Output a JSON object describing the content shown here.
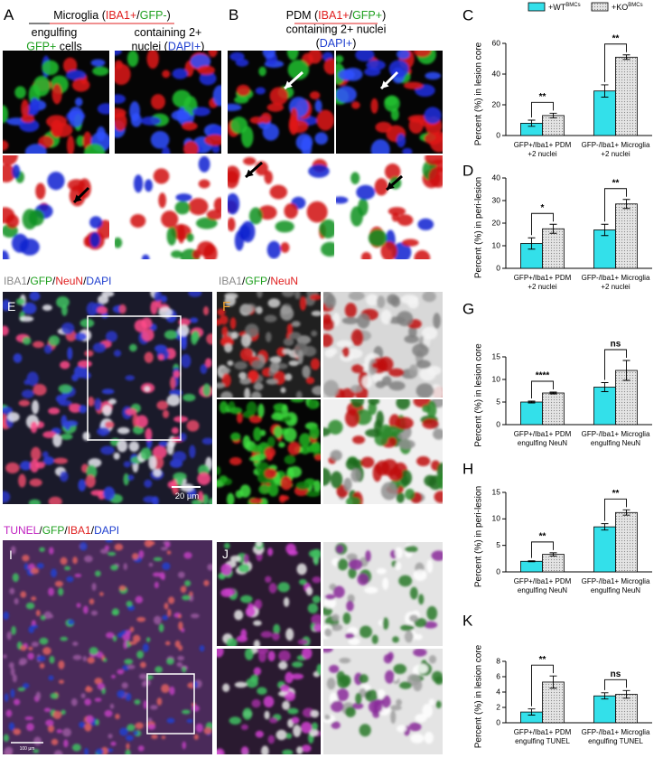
{
  "blocks": {
    "a_label": {
      "lines": [
        [
          {
            "text": "A",
            "color": "#000000"
          }
        ]
      ]
    },
    "a_title": {
      "lines": [
        [
          {
            "text": "Microglia (",
            "color": "#000000"
          },
          {
            "text": "IBA1+",
            "color": "#e02020"
          },
          {
            "text": "/",
            "color": "#000000"
          },
          {
            "text": "GFP-",
            "color": "#1fa01f"
          },
          {
            "text": ")",
            "color": "#000000"
          }
        ]
      ]
    },
    "a_cap1": {
      "lines": [
        [
          {
            "text": "engulfing",
            "color": "#000000"
          }
        ],
        [
          {
            "text": "GFP+",
            "color": "#1fa01f"
          },
          {
            "text": " cells",
            "color": "#000000"
          }
        ]
      ]
    },
    "a_cap2": {
      "lines": [
        [
          {
            "text": "containing 2+",
            "color": "#000000"
          }
        ],
        [
          {
            "text": "nuclei (",
            "color": "#000000"
          },
          {
            "text": "DAPI+",
            "color": "#2040d0"
          },
          {
            "text": ")",
            "color": "#000000"
          }
        ]
      ]
    },
    "b_label": {
      "lines": [
        [
          {
            "text": "B",
            "color": "#000000"
          }
        ]
      ]
    },
    "b_title": {
      "lines": [
        [
          {
            "text": "PDM (",
            "color": "#000000"
          },
          {
            "text": "IBA1+",
            "color": "#e02020"
          },
          {
            "text": "/",
            "color": "#000000"
          },
          {
            "text": "GFP+",
            "color": "#1fa01f"
          },
          {
            "text": ")",
            "color": "#000000"
          }
        ],
        [
          {
            "text": "containing 2+ nuclei",
            "color": "#000000"
          }
        ],
        [
          {
            "text": "(",
            "color": "#000000"
          },
          {
            "text": "DAPI+",
            "color": "#2040d0"
          },
          {
            "text": ")",
            "color": "#000000"
          }
        ]
      ]
    },
    "e_title": {
      "lines": [
        [
          {
            "text": "IBA1",
            "color": "#8a8a8a"
          },
          {
            "text": "/",
            "color": "#000000"
          },
          {
            "text": "GFP",
            "color": "#1fa01f"
          },
          {
            "text": "/",
            "color": "#000000"
          },
          {
            "text": "NeuN",
            "color": "#e02020"
          },
          {
            "text": "/",
            "color": "#000000"
          },
          {
            "text": "DAPI",
            "color": "#2040d0"
          }
        ]
      ]
    },
    "e_label": {
      "lines": [
        [
          {
            "text": "E",
            "color": "#ffffff"
          }
        ]
      ]
    },
    "e_scale": {
      "lines": [
        [
          {
            "text": "20 µm",
            "color": "#ffffff"
          }
        ]
      ]
    },
    "f_title": {
      "lines": [
        [
          {
            "text": "IBA1",
            "color": "#8a8a8a"
          },
          {
            "text": "/",
            "color": "#000000"
          },
          {
            "text": "GFP",
            "color": "#1fa01f"
          },
          {
            "text": "/",
            "color": "#000000"
          },
          {
            "text": "NeuN",
            "color": "#e02020"
          }
        ]
      ]
    },
    "f_label": {
      "lines": [
        [
          {
            "text": "F",
            "color": "#f0a030"
          }
        ]
      ]
    },
    "i_title": {
      "lines": [
        [
          {
            "text": "TUNEL",
            "color": "#c020c0"
          },
          {
            "text": "/",
            "color": "#000000"
          },
          {
            "text": "GFP",
            "color": "#1fa01f"
          },
          {
            "text": "/",
            "color": "#000000"
          },
          {
            "text": "IBA1",
            "color": "#e02020"
          },
          {
            "text": "/",
            "color": "#000000"
          },
          {
            "text": "DAPI",
            "color": "#2040d0"
          }
        ]
      ]
    },
    "i_label": {
      "lines": [
        [
          {
            "text": "I",
            "color": "#ffffff"
          }
        ]
      ]
    },
    "i_scale": {
      "lines": [
        [
          {
            "text": "100 µm",
            "color": "#ffffff"
          }
        ]
      ]
    },
    "j_label": {
      "lines": [
        [
          {
            "text": "J",
            "color": "#ffffff"
          }
        ]
      ]
    }
  },
  "chart_data": [
    {
      "type": "bar",
      "panel": "C",
      "ylabel": "Percent (%) in lesion core",
      "legend": "top",
      "categories": [
        [
          "GFP+/Iba1+ PDM",
          "+2 nuclei"
        ],
        [
          "GFP-/Iba1+ Microglia",
          "+2 nuclei"
        ]
      ],
      "series": [
        {
          "name": "+WT",
          "name_sup": "BMCs",
          "color": "#33e0ea",
          "pattern": "solid",
          "values": [
            8,
            29
          ],
          "errors": [
            2,
            4
          ]
        },
        {
          "name": "+KO",
          "name_sup": "BMCs",
          "color": "#dcdcdc",
          "pattern": "dots",
          "values": [
            13,
            51
          ],
          "errors": [
            1.5,
            1.5
          ]
        }
      ],
      "significance": [
        "**",
        "**"
      ],
      "ylim": [
        0,
        60
      ],
      "yticks": [
        0,
        20,
        40,
        60
      ]
    },
    {
      "type": "bar",
      "panel": "D",
      "ylabel": "Percent (%) in peri-lesion",
      "categories": [
        [
          "GFP+/Iba1+ PDM",
          "+2 nuclei"
        ],
        [
          "GFP-/Iba1+ Microglia",
          "+2 nuclei"
        ]
      ],
      "series": [
        {
          "name": "+WT",
          "name_sup": "BMCs",
          "color": "#33e0ea",
          "pattern": "solid",
          "values": [
            11,
            17
          ],
          "errors": [
            2.5,
            2.5
          ]
        },
        {
          "name": "+KO",
          "name_sup": "BMCs",
          "color": "#dcdcdc",
          "pattern": "dots",
          "values": [
            17.5,
            28.5
          ],
          "errors": [
            2,
            2
          ]
        }
      ],
      "significance": [
        "*",
        "**"
      ],
      "ylim": [
        0,
        40
      ],
      "yticks": [
        0,
        10,
        20,
        30,
        40
      ]
    },
    {
      "type": "bar",
      "panel": "G",
      "ylabel": "Percent (%) in lesion core",
      "categories": [
        [
          "GFP+/Iba1+ PDM",
          "engulfing NeuN"
        ],
        [
          "GFP-/Iba1+ Microglia",
          "engulfing NeuN"
        ]
      ],
      "series": [
        {
          "name": "+WT",
          "name_sup": "BMCs",
          "color": "#33e0ea",
          "pattern": "solid",
          "values": [
            5,
            8.3
          ],
          "errors": [
            0.2,
            1
          ]
        },
        {
          "name": "+KO",
          "name_sup": "BMCs",
          "color": "#dcdcdc",
          "pattern": "dots",
          "values": [
            7,
            12
          ],
          "errors": [
            0.2,
            2.2
          ]
        }
      ],
      "significance": [
        "****",
        "ns"
      ],
      "ylim": [
        0,
        15
      ],
      "yticks": [
        0,
        5,
        10,
        15
      ]
    },
    {
      "type": "bar",
      "panel": "H",
      "ylabel": "Percent (%) in peri-lesion",
      "categories": [
        [
          "GFP+/Iba1+ PDM",
          "engulfing NeuN"
        ],
        [
          "GFP-/Iba1+ Microglia",
          "engulfing NeuN"
        ]
      ],
      "series": [
        {
          "name": "+WT",
          "name_sup": "BMCs",
          "color": "#33e0ea",
          "pattern": "solid",
          "values": [
            2,
            8.5
          ],
          "errors": [
            0.1,
            0.6
          ]
        },
        {
          "name": "+KO",
          "name_sup": "BMCs",
          "color": "#dcdcdc",
          "pattern": "dots",
          "values": [
            3.3,
            11.2
          ],
          "errors": [
            0.3,
            0.5
          ]
        }
      ],
      "significance": [
        "**",
        "**"
      ],
      "ylim": [
        0,
        15
      ],
      "yticks": [
        0,
        5,
        10,
        15
      ]
    },
    {
      "type": "bar",
      "panel": "K",
      "ylabel": "Percent (%) in lesion core",
      "categories": [
        [
          "GFP+/Iba1+ PDM",
          "engulfing TUNEL"
        ],
        [
          "GFP-/Iba1+ Microglia",
          "engulfing TUNEL"
        ]
      ],
      "series": [
        {
          "name": "+WT",
          "name_sup": "BMCs",
          "color": "#33e0ea",
          "pattern": "solid",
          "values": [
            1.4,
            3.5
          ],
          "errors": [
            0.4,
            0.4
          ]
        },
        {
          "name": "+KO",
          "name_sup": "BMCs",
          "color": "#dcdcdc",
          "pattern": "dots",
          "values": [
            5.3,
            3.7
          ],
          "errors": [
            0.8,
            0.5
          ]
        }
      ],
      "significance": [
        "**",
        "ns"
      ],
      "ylim": [
        0,
        8
      ],
      "yticks": [
        0,
        2,
        4,
        6,
        8
      ]
    }
  ]
}
